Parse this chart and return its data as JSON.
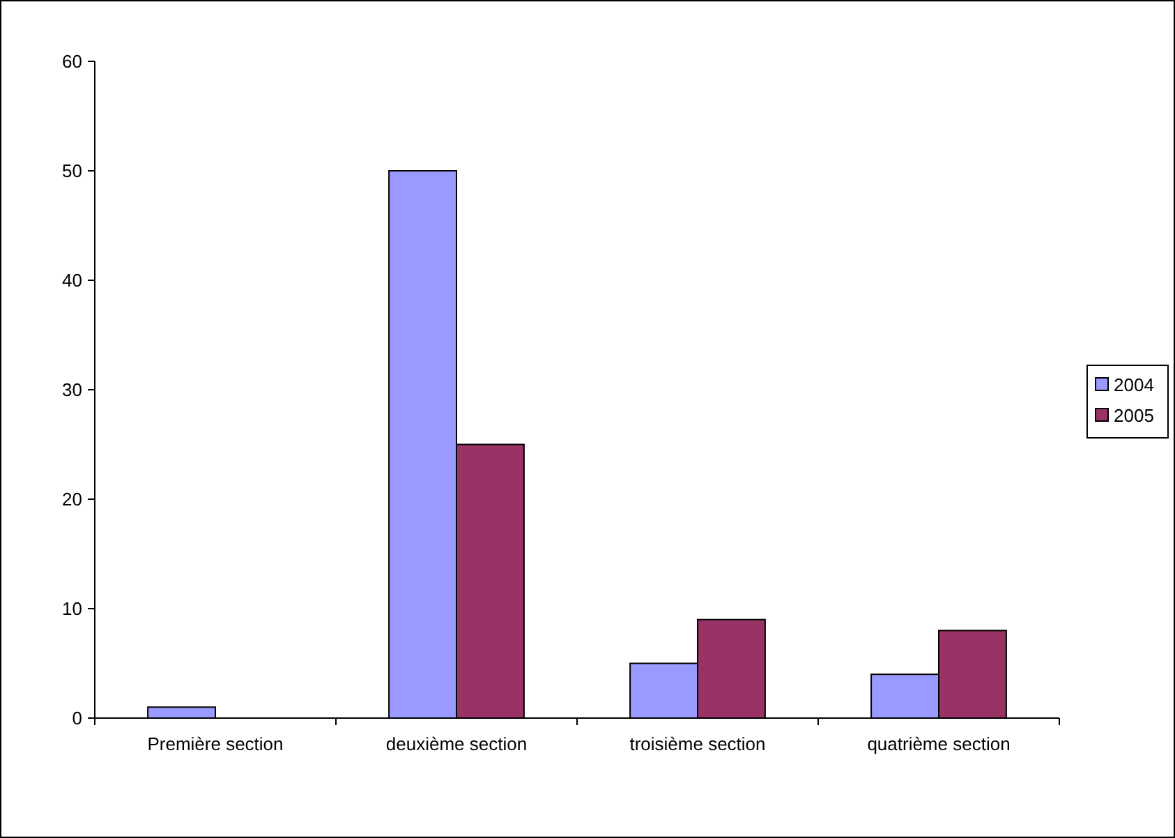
{
  "chart_data": {
    "type": "bar",
    "categories": [
      "Première section",
      "deuxième section",
      "troisième section",
      "quatrième section"
    ],
    "series": [
      {
        "name": "2004",
        "color": "#9999ff",
        "values": [
          1,
          50,
          5,
          4
        ]
      },
      {
        "name": "2005",
        "color": "#993366",
        "values": [
          0,
          25,
          9,
          8
        ]
      }
    ],
    "ylim": [
      0,
      60
    ],
    "yticks": [
      0,
      10,
      20,
      30,
      40,
      50,
      60
    ],
    "grid": false,
    "legend": "right"
  }
}
